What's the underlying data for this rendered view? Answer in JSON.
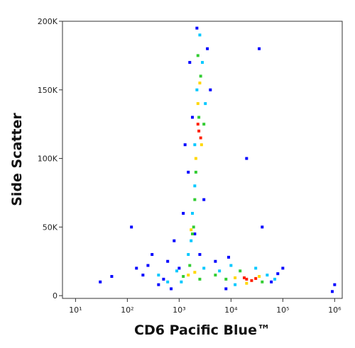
{
  "chart_data": {
    "type": "scatter",
    "xlabel": "CD6 Pacific Blue™",
    "ylabel": "Side Scatter",
    "xscale": "log",
    "xlim": [
      5.6,
      1400000
    ],
    "xticks": [
      {
        "value": 10,
        "label": "10¹"
      },
      {
        "value": 100,
        "label": "10²"
      },
      {
        "value": 1000,
        "label": "10³"
      },
      {
        "value": 10000,
        "label": "10⁴"
      },
      {
        "value": 100000,
        "label": "10⁵"
      },
      {
        "value": 1000000,
        "label": "10⁶"
      }
    ],
    "ylim": [
      -2000,
      200000
    ],
    "yticks": [
      0,
      {
        "value": 50000,
        "label": "50K"
      },
      {
        "value": 100000,
        "label": "100K"
      },
      {
        "value": 150000,
        "label": "150K"
      },
      {
        "value": 200000,
        "label": "200K"
      }
    ],
    "series": [
      {
        "color": "#0000ff",
        "x": [
          200,
          400,
          600,
          800,
          1200,
          1500,
          1800,
          3500,
          1600,
          2200,
          3000,
          300,
          150,
          100000,
          60000,
          80000,
          5000,
          8000,
          40000,
          20000,
          500,
          700,
          2500,
          1000,
          120,
          900000,
          30,
          50,
          9000,
          4000,
          1300,
          1000000,
          250,
          2000,
          35000
        ],
        "y": [
          15000,
          8000,
          25000,
          40000,
          60000,
          90000,
          130000,
          180000,
          170000,
          195000,
          70000,
          30000,
          20000,
          20000,
          10000,
          16000,
          25000,
          5000,
          50000,
          100000,
          12000,
          5000,
          30000,
          20000,
          50000,
          3000,
          10000,
          14000,
          28000,
          150000,
          110000,
          8000,
          22000,
          45000,
          180000
        ]
      },
      {
        "color": "#00c8ff",
        "x": [
          1800,
          2000,
          2200,
          1700,
          2800,
          2500,
          900,
          1100,
          3000,
          6000,
          10000,
          50000,
          70000,
          2000,
          3200,
          1500,
          400,
          600,
          12000,
          30000
        ],
        "y": [
          60000,
          80000,
          150000,
          40000,
          170000,
          190000,
          18000,
          10000,
          20000,
          18000,
          22000,
          15000,
          12000,
          110000,
          140000,
          30000,
          15000,
          10000,
          8000,
          20000
        ]
      },
      {
        "color": "#32cd32",
        "x": [
          1900,
          2100,
          2600,
          2300,
          1600,
          1200,
          2500,
          5000,
          8000,
          15000,
          40000,
          2400,
          2000,
          1800,
          3000
        ],
        "y": [
          50000,
          90000,
          160000,
          175000,
          22000,
          14000,
          12000,
          15000,
          12000,
          18000,
          10000,
          130000,
          70000,
          45000,
          125000
        ]
      },
      {
        "color": "#ffd700",
        "x": [
          2300,
          2500,
          2100,
          1500,
          2000,
          12000,
          35000,
          20000,
          2700,
          1700
        ],
        "y": [
          140000,
          155000,
          100000,
          15000,
          17000,
          13000,
          14000,
          9000,
          110000,
          48000
        ]
      },
      {
        "color": "#ff2000",
        "x": [
          2400,
          2600,
          2300,
          20000,
          25000,
          18000,
          30000
        ],
        "y": [
          120000,
          115000,
          125000,
          12000,
          11000,
          13000,
          12500
        ]
      }
    ]
  }
}
